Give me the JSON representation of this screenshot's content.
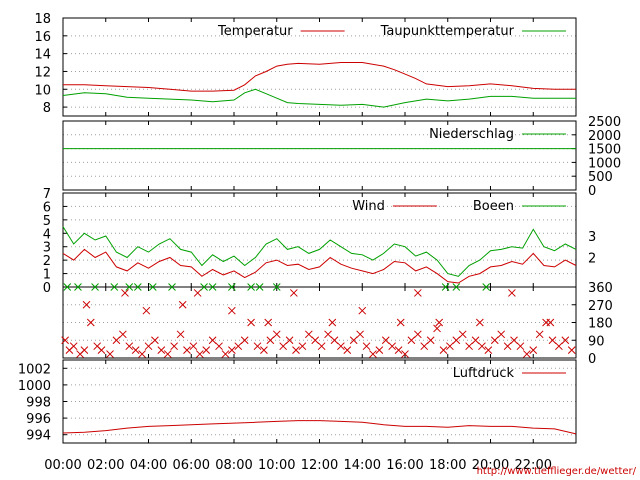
{
  "footer": {
    "url": "http://www.tiefflieger.de/wetter/"
  },
  "colors": {
    "red": "#cc0000",
    "green": "#00a000",
    "grid": "#a0a0a0"
  },
  "chart_data": [
    {
      "id": "temperature",
      "type": "line",
      "ylim": [
        7,
        18
      ],
      "ytick_labels": [
        "8",
        "10",
        "12",
        "14",
        "16",
        "18"
      ],
      "yticks": [
        8,
        10,
        12,
        14,
        16,
        18
      ],
      "legend_position": "top-right",
      "series": [
        {
          "name": "Temperatur",
          "color": "#cc0000",
          "x": [
            0,
            1,
            2,
            3,
            4,
            5,
            6,
            7,
            8,
            8.5,
            9,
            9.5,
            10,
            10.5,
            11,
            12,
            13,
            14,
            15,
            15.5,
            16,
            16.5,
            17,
            18,
            19,
            20,
            21,
            22,
            23,
            24
          ],
          "y": [
            10.5,
            10.5,
            10.4,
            10.3,
            10.2,
            10.0,
            9.8,
            9.8,
            9.9,
            10.5,
            11.5,
            12.0,
            12.6,
            12.8,
            12.9,
            12.8,
            13.0,
            13.0,
            12.6,
            12.2,
            11.7,
            11.2,
            10.6,
            10.3,
            10.4,
            10.6,
            10.4,
            10.1,
            10.0,
            10.0
          ]
        },
        {
          "name": "Taupunkttemperatur",
          "color": "#00a000",
          "x": [
            0,
            1,
            2,
            3,
            4,
            5,
            6,
            7,
            8,
            8.5,
            9,
            9.5,
            10,
            10.5,
            11,
            12,
            13,
            14,
            15,
            16,
            17,
            18,
            19,
            20,
            21,
            22,
            23,
            24
          ],
          "y": [
            9.3,
            9.6,
            9.5,
            9.1,
            9.0,
            8.9,
            8.8,
            8.6,
            8.8,
            9.6,
            10.0,
            9.5,
            9.0,
            8.5,
            8.4,
            8.3,
            8.2,
            8.3,
            8.0,
            8.5,
            8.9,
            8.7,
            8.9,
            9.2,
            9.2,
            9.0,
            9.0,
            9.0
          ]
        }
      ]
    },
    {
      "id": "precipitation",
      "type": "line",
      "ylim": [
        0,
        2500
      ],
      "ytick_labels": [
        "0",
        "500",
        "1000",
        "1500",
        "2000",
        "2500"
      ],
      "yticks": [
        0,
        500,
        1000,
        1500,
        2000,
        2500
      ],
      "legend_position": "top-right",
      "series": [
        {
          "name": "Niederschlag",
          "color": "#00a000",
          "x": [
            0,
            24
          ],
          "y": [
            1500,
            1500
          ]
        }
      ]
    },
    {
      "id": "wind",
      "type": "line",
      "ylim": [
        0,
        7
      ],
      "ytick_labels": [
        "0",
        "1",
        "2",
        "3",
        "4",
        "5",
        "6",
        "7"
      ],
      "yticks": [
        0,
        1,
        2,
        3,
        4,
        5,
        6,
        7
      ],
      "right_tick_labels": [
        "2",
        "3"
      ],
      "right_ticks": [
        2.2,
        3.8
      ],
      "legend_position": "top-right",
      "series": [
        {
          "name": "Wind",
          "color": "#cc0000",
          "x": [
            0,
            0.5,
            1,
            1.5,
            2,
            2.5,
            3,
            3.5,
            4,
            4.5,
            5,
            5.5,
            6,
            6.5,
            7,
            7.5,
            8,
            8.5,
            9,
            9.5,
            10,
            10.5,
            11,
            11.5,
            12,
            12.5,
            13,
            13.5,
            14,
            14.5,
            15,
            15.5,
            16,
            16.5,
            17,
            17.5,
            18,
            18.5,
            19,
            19.5,
            20,
            20.5,
            21,
            21.5,
            22,
            22.5,
            23,
            23.5,
            24
          ],
          "y": [
            2.5,
            2.0,
            2.8,
            2.2,
            2.6,
            1.5,
            1.2,
            1.8,
            1.4,
            1.9,
            2.2,
            1.6,
            1.5,
            0.8,
            1.3,
            0.9,
            1.2,
            0.7,
            1.1,
            1.8,
            2.0,
            1.6,
            1.7,
            1.3,
            1.5,
            2.2,
            1.7,
            1.4,
            1.2,
            1.0,
            1.3,
            1.9,
            1.8,
            1.2,
            1.5,
            1.0,
            0.4,
            0.3,
            0.8,
            1.0,
            1.5,
            1.6,
            1.9,
            1.7,
            2.5,
            1.6,
            1.5,
            2.0,
            1.6
          ]
        },
        {
          "name": "Boeen",
          "color": "#00a000",
          "x": [
            0,
            0.5,
            1,
            1.5,
            2,
            2.5,
            3,
            3.5,
            4,
            4.5,
            5,
            5.5,
            6,
            6.5,
            7,
            7.5,
            8,
            8.5,
            9,
            9.5,
            10,
            10.5,
            11,
            11.5,
            12,
            12.5,
            13,
            13.5,
            14,
            14.5,
            15,
            15.5,
            16,
            16.5,
            17,
            17.5,
            18,
            18.5,
            19,
            19.5,
            20,
            20.5,
            21,
            21.5,
            22,
            22.5,
            23,
            23.5,
            24
          ],
          "y": [
            4.5,
            3.2,
            4.0,
            3.5,
            3.8,
            2.6,
            2.2,
            3.0,
            2.6,
            3.2,
            3.6,
            2.8,
            2.6,
            1.6,
            2.4,
            1.9,
            2.3,
            1.6,
            2.2,
            3.2,
            3.6,
            2.8,
            3.0,
            2.5,
            2.8,
            3.5,
            3.0,
            2.5,
            2.4,
            2.0,
            2.5,
            3.2,
            3.0,
            2.3,
            2.6,
            2.0,
            1.0,
            0.8,
            1.6,
            2.0,
            2.7,
            2.8,
            3.0,
            2.9,
            4.3,
            3.0,
            2.7,
            3.2,
            2.8
          ]
        }
      ]
    },
    {
      "id": "wind-direction",
      "type": "scatter",
      "ylim": [
        0,
        360
      ],
      "ytick_labels": [
        "0",
        "90",
        "180",
        "270",
        "360"
      ],
      "yticks": [
        0,
        90,
        180,
        270,
        360
      ],
      "series": [
        {
          "name": "",
          "color": "#cc0000",
          "marker": "x",
          "x": [
            0.1,
            0.3,
            0.5,
            0.8,
            1.0,
            1.3,
            1.6,
            1.8,
            2.2,
            2.5,
            2.8,
            3.1,
            3.4,
            3.7,
            4.0,
            4.3,
            4.6,
            4.9,
            5.2,
            5.5,
            5.8,
            6.1,
            6.4,
            6.7,
            7.0,
            7.3,
            7.6,
            7.9,
            8.2,
            8.5,
            8.8,
            9.1,
            9.4,
            9.7,
            10.0,
            10.3,
            10.6,
            10.9,
            11.2,
            11.5,
            11.8,
            12.1,
            12.4,
            12.7,
            13.0,
            13.3,
            13.6,
            13.9,
            14.2,
            14.5,
            14.8,
            15.1,
            15.4,
            15.7,
            16.0,
            16.3,
            16.6,
            16.9,
            17.2,
            17.5,
            17.8,
            18.1,
            18.4,
            18.7,
            19.0,
            19.3,
            19.6,
            19.9,
            20.2,
            20.5,
            20.8,
            21.1,
            21.4,
            21.7,
            22.0,
            22.3,
            22.6,
            22.9,
            23.2,
            23.5,
            23.8,
            1.1,
            3.9,
            5.6,
            7.9,
            9.6,
            12.6,
            14.0,
            15.8,
            17.6,
            19.5,
            22.8,
            2.9,
            6.3,
            10.8,
            16.6,
            21.0
          ],
          "y": [
            90,
            40,
            60,
            20,
            40,
            180,
            60,
            40,
            20,
            90,
            120,
            60,
            40,
            20,
            60,
            90,
            40,
            20,
            60,
            120,
            40,
            60,
            20,
            40,
            90,
            60,
            20,
            40,
            60,
            90,
            180,
            60,
            40,
            90,
            120,
            60,
            90,
            40,
            60,
            120,
            90,
            60,
            120,
            90,
            60,
            40,
            90,
            120,
            60,
            20,
            40,
            90,
            60,
            40,
            20,
            90,
            120,
            60,
            90,
            150,
            40,
            60,
            90,
            120,
            60,
            90,
            60,
            40,
            90,
            120,
            60,
            90,
            60,
            20,
            40,
            120,
            180,
            90,
            60,
            90,
            40,
            270,
            240,
            270,
            240,
            180,
            180,
            240,
            180,
            180,
            180,
            180,
            330,
            330,
            330,
            330,
            330
          ]
        },
        {
          "name": "",
          "color": "#00a000",
          "marker": "x",
          "x": [
            0.2,
            0.7,
            1.5,
            2.4,
            3.1,
            3.5,
            4.2,
            5.1,
            6.6,
            7.0,
            7.9,
            8.8,
            9.2,
            10.0,
            17.9,
            18.4,
            19.8
          ],
          "y": [
            360,
            360,
            360,
            360,
            360,
            360,
            360,
            360,
            360,
            360,
            360,
            360,
            360,
            360,
            360,
            360,
            360
          ]
        }
      ]
    },
    {
      "id": "pressure",
      "type": "line",
      "ylim": [
        993,
        1003
      ],
      "ytick_labels": [
        "994",
        "996",
        "998",
        "1000",
        "1002"
      ],
      "yticks": [
        994,
        996,
        998,
        1000,
        1002
      ],
      "xlim": [
        0,
        24
      ],
      "xtick_labels": [
        "00:00",
        "02:00",
        "04:00",
        "06:00",
        "08:00",
        "10:00",
        "12:00",
        "14:00",
        "16:00",
        "18:00",
        "20:00",
        "22:00"
      ],
      "xticks": [
        0,
        2,
        4,
        6,
        8,
        10,
        12,
        14,
        16,
        18,
        20,
        22
      ],
      "legend_position": "top-right",
      "series": [
        {
          "name": "Luftdruck",
          "color": "#cc0000",
          "x": [
            0,
            1,
            2,
            3,
            4,
            5,
            6,
            7,
            8,
            9,
            10,
            11,
            12,
            13,
            14,
            15,
            16,
            17,
            18,
            19,
            20,
            21,
            22,
            23,
            23.5,
            24
          ],
          "y": [
            994.2,
            994.3,
            994.5,
            994.8,
            995.0,
            995.1,
            995.2,
            995.3,
            995.4,
            995.5,
            995.6,
            995.7,
            995.7,
            995.6,
            995.5,
            995.2,
            995.0,
            995.0,
            994.9,
            995.1,
            995.0,
            995.0,
            994.8,
            994.7,
            994.4,
            994.1
          ]
        }
      ]
    }
  ]
}
